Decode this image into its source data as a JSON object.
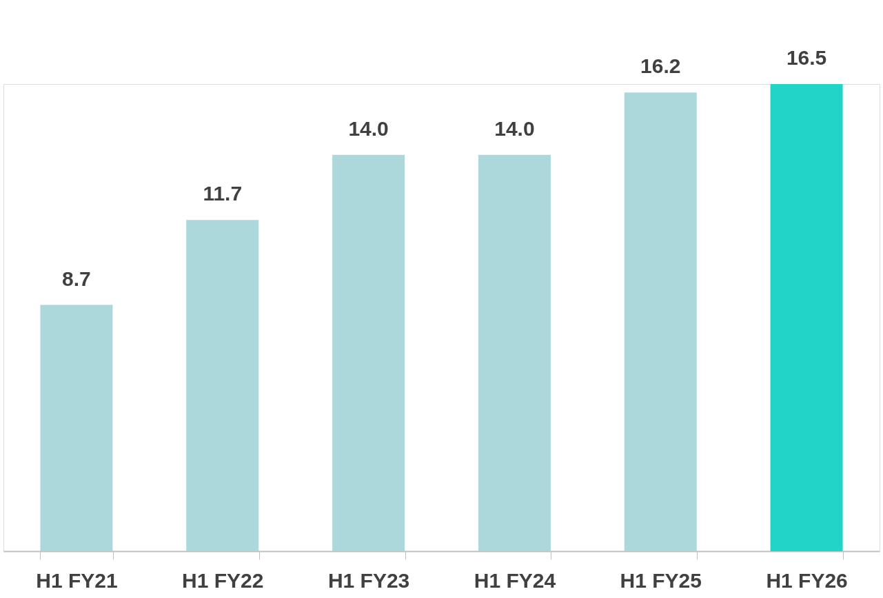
{
  "chart_data": {
    "type": "bar",
    "categories": [
      "H1 FY21",
      "H1 FY22",
      "H1 FY23",
      "H1 FY24",
      "H1 FY25",
      "H1 FY26"
    ],
    "values": [
      8.7,
      11.7,
      14.0,
      14.0,
      16.2,
      16.5
    ],
    "value_labels": [
      "8.7",
      "11.7",
      "14.0",
      "14.0",
      "16.2",
      "16.5"
    ],
    "colors": [
      "#acd8dc",
      "#acd8dc",
      "#acd8dc",
      "#acd8dc",
      "#acd8dc",
      "#22d3c8"
    ],
    "grid": false,
    "legend": false
  }
}
